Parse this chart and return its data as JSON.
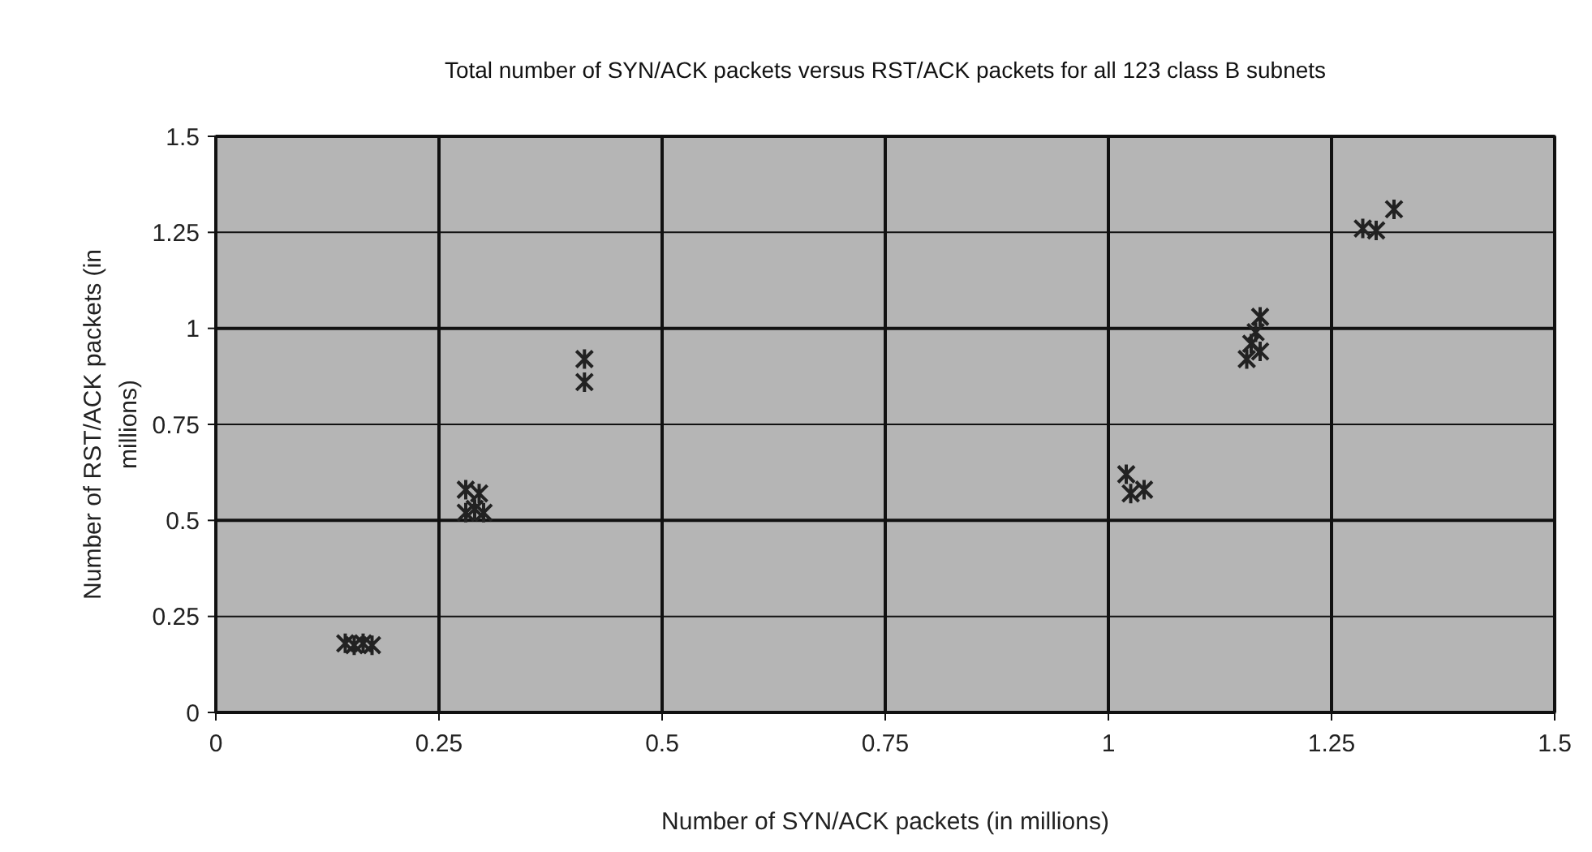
{
  "chart_data": {
    "type": "scatter",
    "title": "Total number of SYN/ACK packets versus RST/ACK packets for all 123 class B subnets",
    "xlabel": "Number of SYN/ACK packets (in millions)",
    "ylabel": "Number of RST/ACK packets (in millions)",
    "x": [
      0.145,
      0.155,
      0.165,
      0.175,
      0.28,
      0.295,
      0.28,
      0.29,
      0.3,
      0.413,
      0.413,
      1.02,
      1.04,
      1.025,
      1.17,
      1.165,
      1.16,
      1.155,
      1.17,
      1.285,
      1.3,
      1.32
    ],
    "values": [
      0.18,
      0.175,
      0.18,
      0.175,
      0.58,
      0.57,
      0.52,
      0.53,
      0.52,
      0.92,
      0.86,
      0.62,
      0.58,
      0.57,
      1.03,
      0.99,
      0.96,
      0.92,
      0.94,
      1.26,
      1.255,
      1.31
    ],
    "color": "#222222",
    "marker": "cross",
    "xlim": [
      0,
      1.5
    ],
    "ylim": [
      0,
      1.5
    ],
    "xticks": [
      0,
      0.25,
      0.5,
      0.75,
      1,
      1.25,
      1.5
    ],
    "yticks": [
      0,
      0.25,
      0.5,
      0.75,
      1,
      1.25,
      1.5
    ],
    "grid": true
  }
}
